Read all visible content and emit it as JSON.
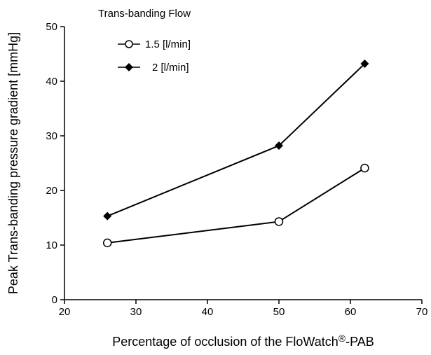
{
  "chart_data": {
    "type": "line",
    "xlabel_main": "Percentage of occlusion of the FloWatch",
    "xlabel_symbol": "®",
    "xlabel_suffix": "-PAB",
    "ylabel": "Peak Trans-banding pressure gradient  [mmHg]",
    "xlim": [
      20,
      70
    ],
    "ylim": [
      0,
      50
    ],
    "xticks": [
      "20",
      "30",
      "40",
      "50",
      "60",
      "70"
    ],
    "yticks": [
      "0",
      "10",
      "20",
      "30",
      "40",
      "50"
    ],
    "legend_title": "Trans-banding Flow",
    "legend_position": "top-left",
    "grid": false,
    "series": [
      {
        "name": "1.5 [l/min]",
        "marker": "open-circle",
        "x": [
          26,
          50,
          62
        ],
        "y": [
          10.4,
          14.3,
          24.1
        ]
      },
      {
        "name": "2 [l/min]",
        "marker": "filled-diamond",
        "x": [
          26,
          50,
          62
        ],
        "y": [
          15.3,
          28.2,
          43.2
        ]
      }
    ]
  }
}
